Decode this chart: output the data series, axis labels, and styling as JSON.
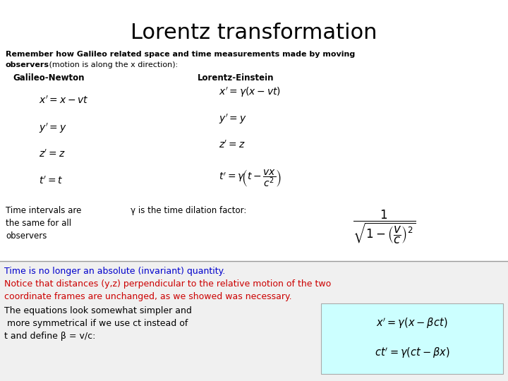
{
  "title": "Lorentz transformation",
  "title_fontsize": 22,
  "bg_color": "#ffffff",
  "intro_line1": "Remember how Galileo related space and time measurements made by moving",
  "intro_line2_bold": "observers",
  "intro_line2_normal": " (motion is along the x direction):",
  "col_left_header": "Galileo-Newton",
  "col_right_header": "Lorentz-Einstein",
  "bottom_blue_line1": "Time is no longer an absolute (invariant) quantity.",
  "bottom_red_lines": [
    "Notice that distances (y,z) perpendicular to the relative motion of the two",
    "coordinate frames are unchanged, as we showed was necessary."
  ],
  "bottom_black_lines": [
    "The equations look somewhat simpler and",
    " more symmetrical if we use ct instead of",
    "t and define β = v/c:"
  ],
  "eq_box_color": "#ccffff",
  "blue_color": "#0000cc",
  "red_color": "#cc0000",
  "black_color": "#000000",
  "separator_color": "#999999",
  "time_intervals_lines": [
    "Time intervals are",
    "the same for all",
    "observers"
  ],
  "gamma_text": "γ is the time dilation factor:"
}
